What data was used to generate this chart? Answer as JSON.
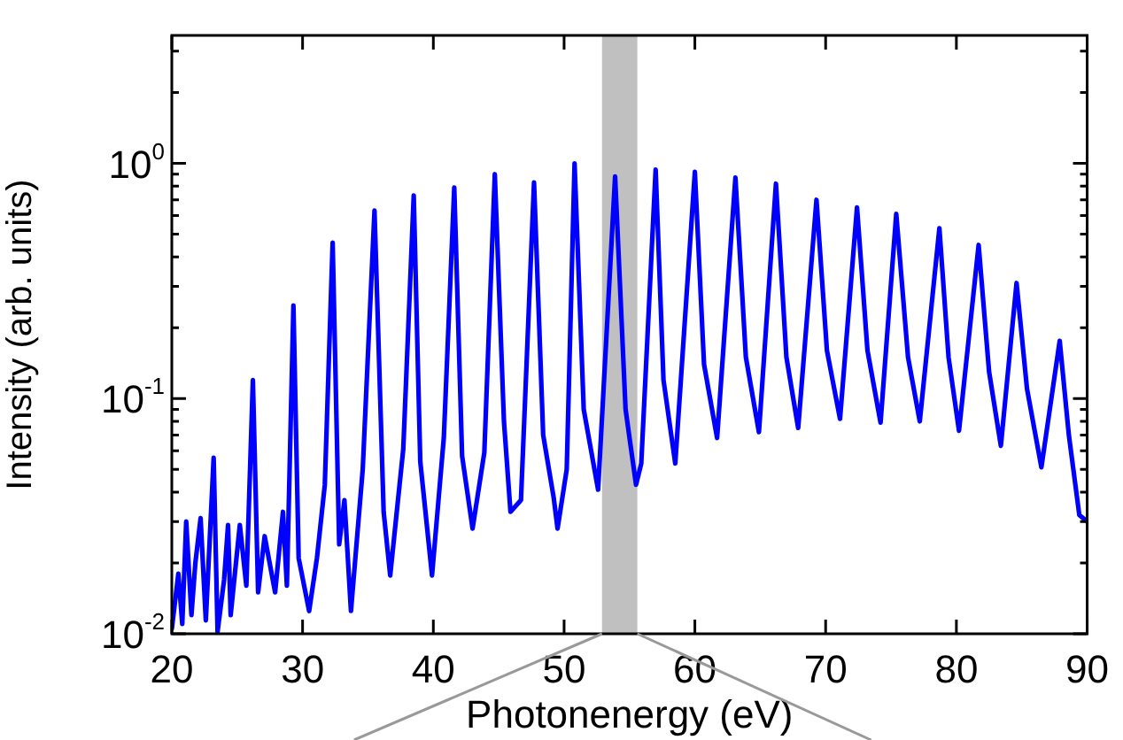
{
  "chart_data": {
    "type": "line",
    "xlabel": "Photonenergy (eV)",
    "ylabel": "Intensity (arb. units)",
    "log": "y",
    "grid": false,
    "legend": false,
    "marker": "none",
    "line_style": "solid",
    "xlim": [
      20,
      90
    ],
    "xticks": [
      20,
      30,
      40,
      50,
      60,
      70,
      80,
      90
    ],
    "ylim": [
      0.01,
      3.5
    ],
    "yticks": [
      {
        "value": 0.01,
        "label": "10$^{-2}$"
      },
      {
        "value": 0.02,
        "label": null
      },
      {
        "value": 0.03,
        "label": null
      },
      {
        "value": 0.04,
        "label": null
      },
      {
        "value": 0.05,
        "label": null
      },
      {
        "value": 0.06,
        "label": null
      },
      {
        "value": 0.07,
        "label": null
      },
      {
        "value": 0.08,
        "label": null
      },
      {
        "value": 0.09,
        "label": null
      },
      {
        "value": 0.1,
        "label": "10$^{-1}$"
      },
      {
        "value": 0.2,
        "label": null
      },
      {
        "value": 0.3,
        "label": null
      },
      {
        "value": 0.4,
        "label": null
      },
      {
        "value": 0.5,
        "label": null
      },
      {
        "value": 0.6,
        "label": null
      },
      {
        "value": 0.7,
        "label": null
      },
      {
        "value": 0.8,
        "label": null
      },
      {
        "value": 0.9,
        "label": null
      },
      {
        "value": 1,
        "label": "10$^{0}$"
      },
      {
        "value": 2,
        "label": null
      },
      {
        "value": 3,
        "label": null
      }
    ],
    "bands": [
      {
        "axis": "x",
        "from": 52.9,
        "to": 55.6,
        "color": "#c0c0c0"
      }
    ],
    "series": [
      {
        "color": "#0000ff",
        "x": [
          20,
          20.5,
          20.8,
          21.1,
          21.5,
          21.8,
          22.2,
          22.6,
          23.2,
          23.5,
          24.0,
          24.3,
          24.5,
          25.2,
          25.7,
          26.2,
          26.6,
          27.1,
          27.9,
          28.5,
          28.8,
          29.3,
          29.7,
          30.5,
          31.1,
          31.7,
          32.3,
          32.8,
          33.2,
          33.7,
          34.6,
          35.5,
          36.2,
          36.7,
          37.7,
          38.5,
          39.0,
          39.9,
          40.8,
          41.6,
          42.2,
          43.0,
          43.9,
          44.7,
          45.4,
          45.9,
          46.7,
          47.7,
          48.4,
          49.2,
          49.5,
          50.2,
          50.8,
          51.5,
          52.6,
          53.9,
          54.7,
          55.5,
          55.9,
          57.0,
          57.6,
          58.5,
          60.0,
          60.7,
          61.7,
          63.1,
          63.9,
          64.9,
          66.2,
          67.0,
          67.9,
          69.3,
          70.1,
          71.1,
          72.4,
          73.2,
          74.2,
          75.4,
          76.3,
          77.2,
          78.7,
          79.4,
          80.2,
          81.7,
          82.5,
          83.4,
          84.6,
          85.4,
          86.5,
          87.9,
          88.6,
          89.4,
          90
        ],
        "values": [
          0.0105,
          0.018,
          0.011,
          0.03,
          0.012,
          0.02,
          0.031,
          0.0114,
          0.056,
          0.0102,
          0.017,
          0.029,
          0.012,
          0.029,
          0.016,
          0.12,
          0.015,
          0.026,
          0.015,
          0.033,
          0.016,
          0.249,
          0.021,
          0.0125,
          0.021,
          0.043,
          0.46,
          0.024,
          0.037,
          0.0125,
          0.05,
          0.63,
          0.033,
          0.0177,
          0.061,
          0.73,
          0.054,
          0.0177,
          0.068,
          0.79,
          0.057,
          0.028,
          0.059,
          0.9,
          0.08,
          0.033,
          0.037,
          0.83,
          0.07,
          0.038,
          0.028,
          0.05,
          1.0,
          0.09,
          0.041,
          0.88,
          0.09,
          0.043,
          0.053,
          0.94,
          0.12,
          0.053,
          0.92,
          0.14,
          0.068,
          0.87,
          0.15,
          0.072,
          0.82,
          0.15,
          0.075,
          0.7,
          0.16,
          0.082,
          0.65,
          0.16,
          0.079,
          0.61,
          0.15,
          0.08,
          0.53,
          0.15,
          0.073,
          0.45,
          0.13,
          0.063,
          0.31,
          0.11,
          0.051,
          0.176,
          0.07,
          0.032,
          0.03
        ]
      }
    ]
  }
}
